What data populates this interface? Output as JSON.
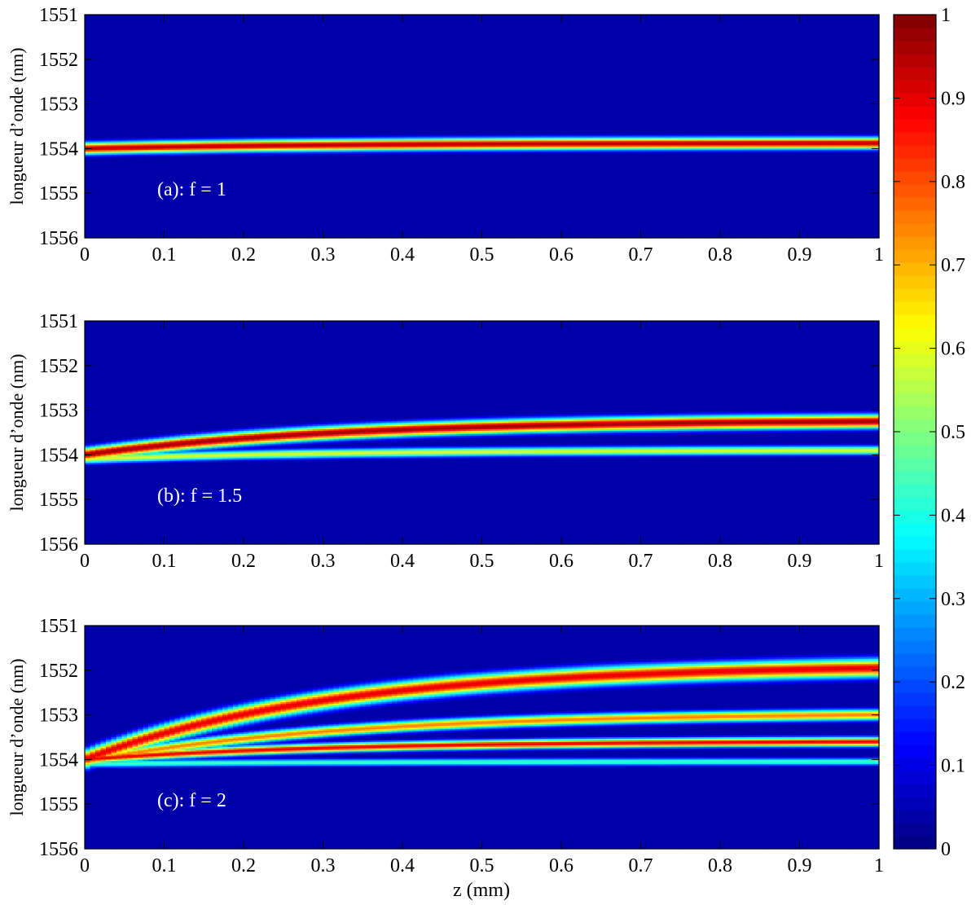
{
  "chart_data": {
    "type": "heatmap",
    "colormap": "jet",
    "colorbar": {
      "ticks": [
        "0",
        "0.1",
        "0.2",
        "0.3",
        "0.4",
        "0.5",
        "0.6",
        "0.7",
        "0.8",
        "0.9",
        "1"
      ],
      "range": [
        0,
        1
      ]
    },
    "xlabel": "z (mm)",
    "panels": [
      {
        "annotation": "(a): f = 1",
        "ylabel": "longueur d’onde (nm)",
        "xlim": [
          0,
          1
        ],
        "ylim": [
          1551,
          1556
        ],
        "y_reversed": true,
        "xticks": [
          "0",
          "0.1",
          "0.2",
          "0.3",
          "0.4",
          "0.5",
          "0.6",
          "0.7",
          "0.8",
          "0.9",
          "1"
        ],
        "yticks": [
          "1551",
          "1552",
          "1553",
          "1554",
          "1555",
          "1556"
        ],
        "ridges": [
          {
            "start": 1554.0,
            "end": 1553.88,
            "amplitude": 0.95,
            "width": 0.13
          }
        ]
      },
      {
        "annotation": "(b): f = 1.5",
        "ylabel": "longueur d’onde (nm)",
        "xlim": [
          0,
          1
        ],
        "ylim": [
          1551,
          1556
        ],
        "y_reversed": true,
        "xticks": [
          "0",
          "0.1",
          "0.2",
          "0.3",
          "0.4",
          "0.5",
          "0.6",
          "0.7",
          "0.8",
          "0.9",
          "1"
        ],
        "yticks": [
          "1551",
          "1552",
          "1553",
          "1554",
          "1555",
          "1556"
        ],
        "ridges": [
          {
            "start": 1554.0,
            "end": 1553.25,
            "amplitude": 0.97,
            "width": 0.15
          },
          {
            "start": 1554.1,
            "end": 1553.9,
            "amplitude": 0.6,
            "width": 0.1
          }
        ]
      },
      {
        "annotation": "(c): f = 2",
        "ylabel": "longueur d’onde (nm)",
        "xlim": [
          0,
          1
        ],
        "ylim": [
          1551,
          1556
        ],
        "y_reversed": true,
        "xticks": [
          "0",
          "0.1",
          "0.2",
          "0.3",
          "0.4",
          "0.5",
          "0.6",
          "0.7",
          "0.8",
          "0.9",
          "1"
        ],
        "yticks": [
          "1551",
          "1552",
          "1553",
          "1554",
          "1555",
          "1556"
        ],
        "ridges": [
          {
            "start": 1554.0,
            "end": 1551.95,
            "amplitude": 0.9,
            "width": 0.2
          },
          {
            "start": 1554.05,
            "end": 1553.0,
            "amplitude": 0.75,
            "width": 0.12
          },
          {
            "start": 1554.0,
            "end": 1553.6,
            "amplitude": 0.9,
            "width": 0.1
          },
          {
            "start": 1554.1,
            "end": 1554.05,
            "amplitude": 0.45,
            "width": 0.08
          }
        ]
      }
    ]
  }
}
